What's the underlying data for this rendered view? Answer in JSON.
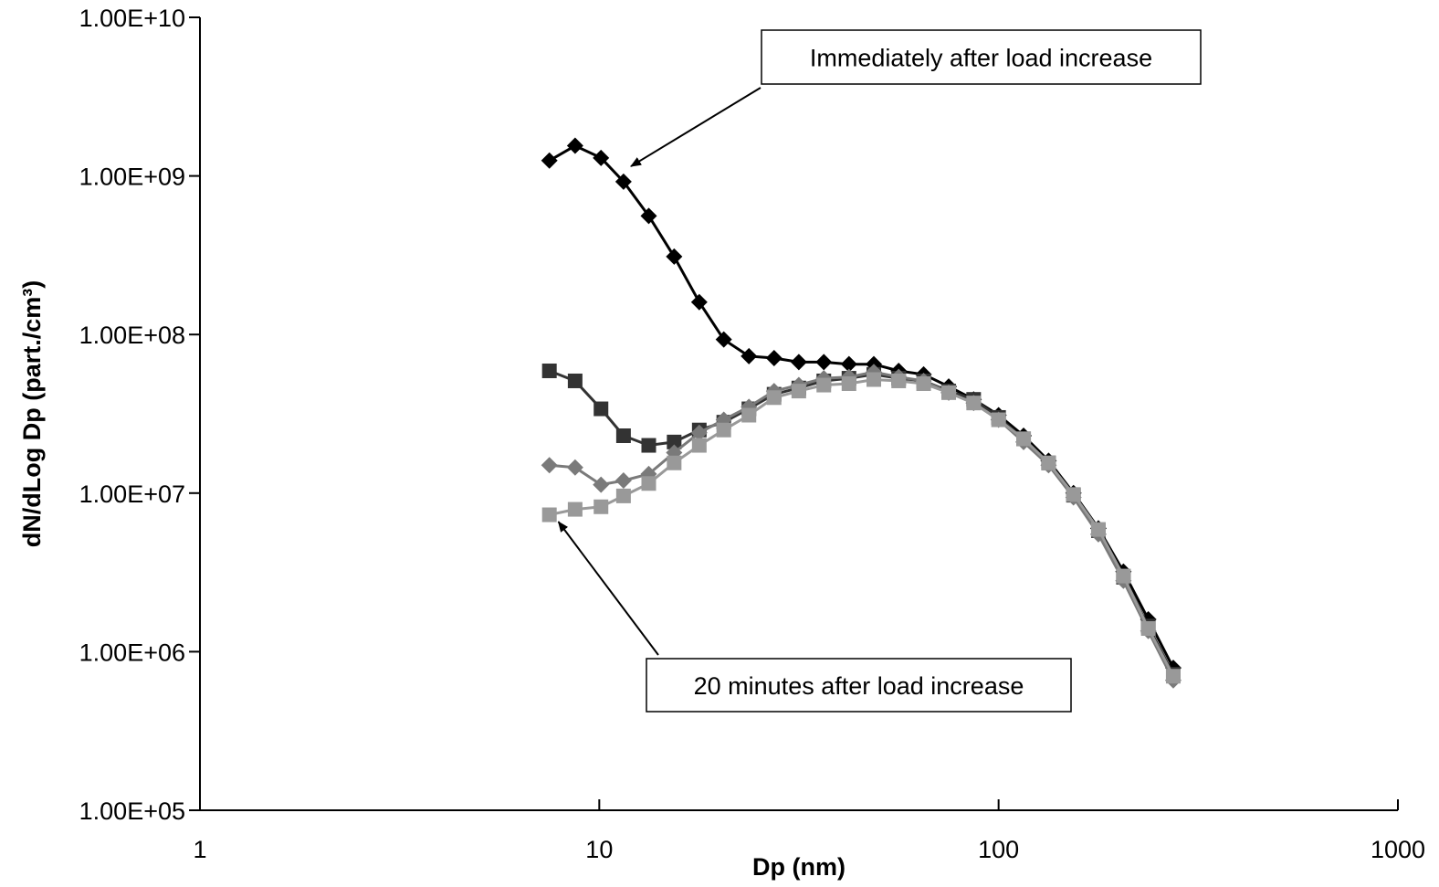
{
  "chart_data": {
    "type": "line",
    "xlabel": "Dp  (nm)",
    "ylabel": "dN/dLog Dp  (part./cm³)",
    "x_scale": "log",
    "y_scale": "log",
    "xlim": [
      1,
      1000
    ],
    "ylim": [
      100000,
      10000000000
    ],
    "x_ticks": [
      "1",
      "10",
      "100",
      "1000"
    ],
    "y_ticks": [
      "1.00E+05",
      "1.00E+06",
      "1.00E+07",
      "1.00E+08",
      "1.00E+09",
      "1.00E+10"
    ],
    "grid": false,
    "legend": "none",
    "x": [
      7.5,
      8.7,
      10.1,
      11.5,
      13.3,
      15.4,
      17.8,
      20.5,
      23.7,
      27.4,
      31.6,
      36.5,
      42.2,
      48.7,
      56.2,
      64.9,
      75.0,
      86.6,
      100,
      115.5,
      133.4,
      154,
      177.8,
      205.4,
      237.1,
      273.8
    ],
    "series": [
      {
        "color": "#000000",
        "marker": "diamond",
        "values": [
          1250000000,
          1550000000,
          1300000000,
          920000000,
          560000000,
          310000000,
          160000000,
          93000000,
          73000000,
          71000000,
          67000000,
          67000000,
          65000000,
          65000000,
          59000000,
          56000000,
          47000000,
          39000000,
          31000000,
          23000000,
          16000000,
          10000000,
          6000000,
          3200000,
          1600000,
          790000
        ]
      },
      {
        "color": "#333333",
        "marker": "square",
        "values": [
          59000000,
          51000000,
          34000000,
          23000000,
          20000000,
          21000000,
          25000000,
          28000000,
          34000000,
          42000000,
          46000000,
          51000000,
          53000000,
          56000000,
          53000000,
          51000000,
          44000000,
          39000000,
          30000000,
          22000000,
          15500000,
          9700000,
          5800000,
          2950000,
          1450000,
          720000
        ]
      },
      {
        "color": "#7a7a7a",
        "marker": "diamond",
        "values": [
          15000000,
          14500000,
          11300000,
          12000000,
          13200000,
          18000000,
          24000000,
          29000000,
          35000000,
          44000000,
          48000000,
          53000000,
          54000000,
          58000000,
          54000000,
          51000000,
          43000000,
          37000000,
          29000000,
          21000000,
          15000000,
          9400000,
          5500000,
          2800000,
          1350000,
          660000
        ]
      },
      {
        "color": "#999999",
        "marker": "square",
        "values": [
          7300000,
          7900000,
          8200000,
          9600000,
          11500000,
          15500000,
          20000000,
          25000000,
          31000000,
          40000000,
          44000000,
          48000000,
          49000000,
          52000000,
          51000000,
          49000000,
          43000000,
          37000000,
          29000000,
          22000000,
          15500000,
          9800000,
          5900000,
          3000000,
          1400000,
          700000
        ]
      }
    ],
    "annotations": [
      {
        "text": "Immediately after load increase",
        "points_to": [
          12,
          1150000000
        ]
      },
      {
        "text": "20 minutes after load increase",
        "points_to": [
          7.9,
          6600000
        ]
      }
    ]
  }
}
